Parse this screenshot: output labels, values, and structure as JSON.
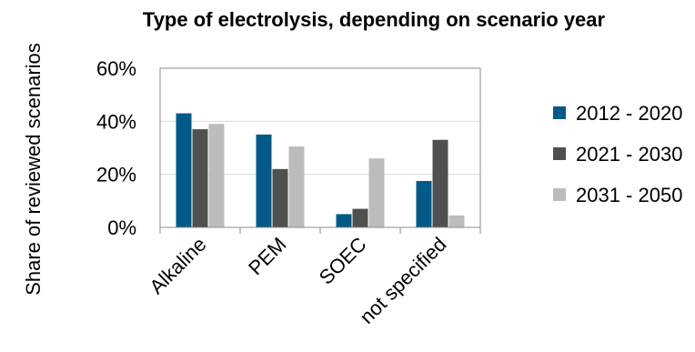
{
  "chart_data": {
    "type": "bar",
    "title": "Type of electrolysis, depending on scenario year",
    "ylabel": "Share of reviewed scenarios",
    "xlabel": "",
    "categories": [
      "Alkaline",
      "PEM",
      "SOEC",
      "not specified"
    ],
    "series": [
      {
        "name": "2012 - 2020",
        "color": "#005a87",
        "values": [
          43,
          35,
          5,
          17.5
        ]
      },
      {
        "name": "2021 - 2030",
        "color": "#505050",
        "values": [
          37,
          22,
          7,
          33
        ]
      },
      {
        "name": "2031 - 2050",
        "color": "#bcbcbe",
        "values": [
          39,
          30.5,
          26,
          4.5
        ]
      }
    ],
    "ylim": [
      0,
      60
    ],
    "yticks": [
      0,
      20,
      40,
      60
    ],
    "ytick_labels": [
      "0%",
      "20%",
      "40%",
      "60%"
    ],
    "grid": true,
    "legend_position": "right"
  }
}
